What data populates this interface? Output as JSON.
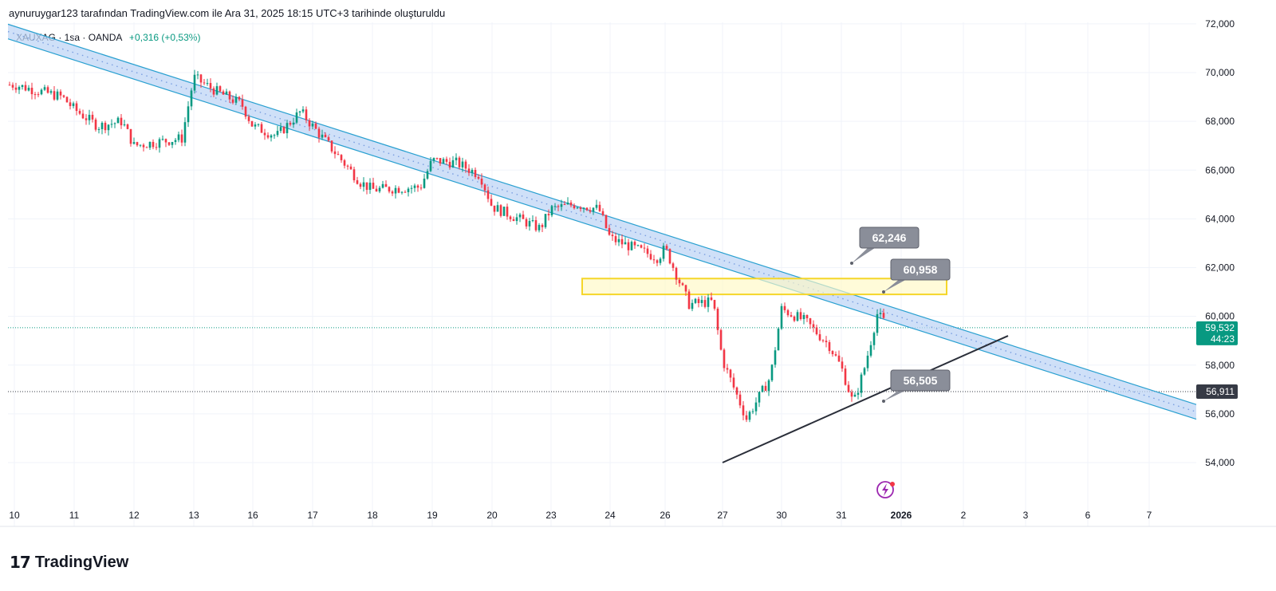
{
  "header": {
    "attribution": "aynuruygar123 tarafından TradingView.com ile Ara 31, 2025 18:15 UTC+3 tarihinde oluşturuldu"
  },
  "legend": {
    "symbol": "XAUXAG · 1sa · OANDA",
    "change": "+0,316 (+0,53%)"
  },
  "footer": {
    "logo_mark": "17",
    "logo_text": "TradingView"
  },
  "colors": {
    "up": "#089981",
    "down": "#f23645",
    "channel_fill": "#bfd6f6",
    "channel_border": "#29a0d0",
    "zone_fill": "#fff9c4",
    "zone_border": "#f5d629",
    "label_bg": "#8a8e99",
    "current_price_bg": "#089981",
    "level_bg": "#363a45",
    "trendline": "#2a2e39"
  },
  "chart_data": {
    "type": "candlestick",
    "symbol": "XAUXAG",
    "interval": "1sa",
    "source": "OANDA",
    "ylim": [
      52800,
      72000
    ],
    "y_ticks": [
      "72,000",
      "70,000",
      "68,000",
      "66,000",
      "64,000",
      "62,000",
      "60,000",
      "58,000",
      "56,000",
      "54,000"
    ],
    "x_ticks": [
      "10",
      "11",
      "12",
      "13",
      "16",
      "17",
      "18",
      "19",
      "20",
      "23",
      "24",
      "26",
      "27",
      "30",
      "31",
      "2026",
      "2",
      "3",
      "6",
      "7"
    ],
    "price_path": [
      [
        "10",
        69500
      ],
      [
        "10",
        69000
      ],
      [
        "11",
        68500
      ],
      [
        "11",
        67800
      ],
      [
        "11",
        68000
      ],
      [
        "12",
        67000
      ],
      [
        "12",
        67300
      ],
      [
        "13",
        69800
      ],
      [
        "13",
        69200
      ],
      [
        "13",
        68700
      ],
      [
        "16",
        67800
      ],
      [
        "16",
        67400
      ],
      [
        "16",
        68400
      ],
      [
        "17",
        67800
      ],
      [
        "17",
        65500
      ],
      [
        "18",
        65200
      ],
      [
        "18",
        65300
      ],
      [
        "19",
        66400
      ],
      [
        "19",
        66300
      ],
      [
        "19",
        65800
      ],
      [
        "20",
        64500
      ],
      [
        "20",
        63600
      ],
      [
        "23",
        64400
      ],
      [
        "23",
        64600
      ],
      [
        "23",
        64400
      ],
      [
        "24",
        63200
      ],
      [
        "24",
        62400
      ],
      [
        "26",
        62800
      ],
      [
        "26",
        60500
      ],
      [
        "26",
        60600
      ],
      [
        "27",
        58200
      ],
      [
        "27",
        55800
      ],
      [
        "27",
        57500
      ],
      [
        "30",
        60300
      ],
      [
        "30",
        59800
      ],
      [
        "30",
        58800
      ],
      [
        "31",
        57900
      ],
      [
        "31",
        56400
      ],
      [
        "31",
        58000
      ],
      [
        "31",
        60100
      ],
      [
        "31",
        59532
      ]
    ],
    "last_price": "59,532",
    "countdown": "44:23",
    "level_line": "56,911",
    "annotations": {
      "labels": [
        "62,246",
        "60,958",
        "56,505"
      ],
      "descending_channel": {
        "from": [
          "10",
          71900
        ],
        "to": [
          "7",
          57000
        ],
        "width": 600
      },
      "resistance_zone": {
        "from": "24",
        "to": "2",
        "y": [
          60900,
          61550
        ]
      },
      "support_trendline": {
        "from": [
          "27",
          54000
        ],
        "to": [
          "3",
          59200
        ]
      }
    }
  }
}
